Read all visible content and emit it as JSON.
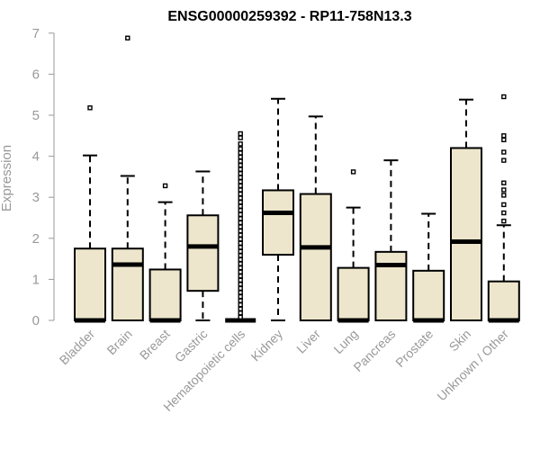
{
  "chart_data": {
    "type": "boxplot",
    "title": "ENSG00000259392 - RP11-758N13.3",
    "ylabel": "Expression",
    "xlabel": "",
    "ylim": [
      0,
      7
    ],
    "yticks": [
      "0",
      "1",
      "2",
      "3",
      "4",
      "5",
      "6",
      "7"
    ],
    "categories": [
      "Bladder",
      "Brain",
      "Breast",
      "Gastric",
      "Hematopoietic cells",
      "Kidney",
      "Liver",
      "Lung",
      "Pancreas",
      "Prostate",
      "Skin",
      "Unknown / Other"
    ],
    "box_color": "#ede6cc",
    "boxes": [
      {
        "q1": 0,
        "median": 0,
        "q3": 1.75,
        "whisker_low": 0,
        "whisker_high": 4.02,
        "outliers": [
          5.18
        ]
      },
      {
        "q1": 0,
        "median": 1.36,
        "q3": 1.75,
        "whisker_low": 0,
        "whisker_high": 3.52,
        "outliers": [
          6.88
        ]
      },
      {
        "q1": 0,
        "median": 0,
        "q3": 1.24,
        "whisker_low": 0,
        "whisker_high": 2.88,
        "outliers": [
          3.28
        ]
      },
      {
        "q1": 0.72,
        "median": 1.8,
        "q3": 2.56,
        "whisker_low": 0,
        "whisker_high": 3.63,
        "outliers": []
      },
      {
        "q1": 0,
        "median": 0,
        "q3": 0,
        "whisker_low": 0,
        "whisker_high": 0,
        "outliers": [
          0.08,
          0.18,
          0.28,
          0.38,
          0.48,
          0.58,
          0.68,
          0.78,
          0.88,
          0.98,
          1.08,
          1.18,
          1.28,
          1.38,
          1.48,
          1.58,
          1.68,
          1.78,
          1.88,
          1.98,
          2.08,
          2.18,
          2.28,
          2.38,
          2.48,
          2.58,
          2.68,
          2.78,
          2.88,
          2.98,
          3.08,
          3.18,
          3.28,
          3.38,
          3.48,
          3.58,
          3.68,
          3.78,
          3.88,
          3.98,
          4.08,
          4.18,
          4.3,
          4.45,
          4.55
        ]
      },
      {
        "q1": 1.6,
        "median": 2.62,
        "q3": 3.17,
        "whisker_low": 0,
        "whisker_high": 5.4,
        "outliers": []
      },
      {
        "q1": 0,
        "median": 1.78,
        "q3": 3.08,
        "whisker_low": 0,
        "whisker_high": 4.97,
        "outliers": []
      },
      {
        "q1": 0,
        "median": 0,
        "q3": 1.28,
        "whisker_low": 0,
        "whisker_high": 2.75,
        "outliers": [
          3.62
        ]
      },
      {
        "q1": 0,
        "median": 1.35,
        "q3": 1.67,
        "whisker_low": 0,
        "whisker_high": 3.9,
        "outliers": []
      },
      {
        "q1": 0,
        "median": 0,
        "q3": 1.21,
        "whisker_low": 0,
        "whisker_high": 2.6,
        "outliers": []
      },
      {
        "q1": 0,
        "median": 1.92,
        "q3": 4.2,
        "whisker_low": 0,
        "whisker_high": 5.38,
        "outliers": []
      },
      {
        "q1": 0,
        "median": 0,
        "q3": 0.95,
        "whisker_low": 0,
        "whisker_high": 2.32,
        "outliers": [
          2.42,
          2.62,
          2.82,
          3.05,
          3.18,
          3.35,
          3.9,
          4.1,
          4.4,
          4.5,
          5.45
        ]
      }
    ]
  }
}
